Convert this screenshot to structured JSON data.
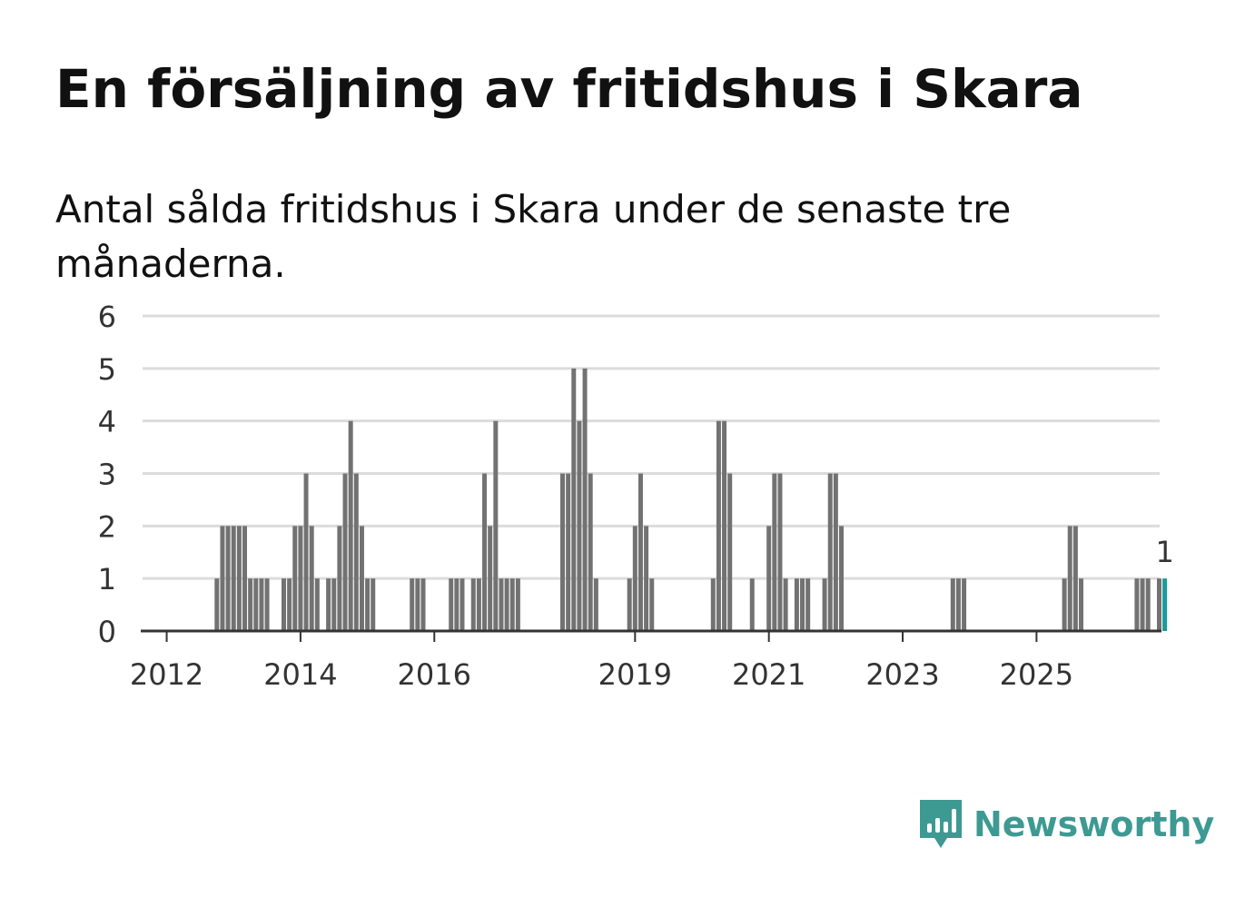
{
  "title": "En försäljning av fritidshus i Skara",
  "subtitle": "Antal sålda fritidshus i Skara under de senaste tre månaderna.",
  "brand": {
    "name": "Newsworthy",
    "icon": "newsworthy-logo-icon",
    "color": "#3d9a93"
  },
  "colors": {
    "bar": "#727272",
    "highlight": "#1a9b9b",
    "grid": "#dcdcdc",
    "axis": "#333333"
  },
  "chart_data": {
    "type": "bar",
    "title": "En försäljning av fritidshus i Skara",
    "xlabel": "",
    "ylabel": "",
    "ylim": [
      0,
      6
    ],
    "y_ticks": [
      "0",
      "1",
      "2",
      "3",
      "4",
      "5",
      "6"
    ],
    "x_tick_labels": [
      "2012",
      "2014",
      "2016",
      "2019",
      "2021",
      "2023",
      "2025"
    ],
    "start": "2011-09",
    "unit": "month",
    "values": [
      0,
      0,
      0,
      0,
      0,
      0,
      0,
      0,
      0,
      0,
      0,
      0,
      0,
      1,
      2,
      2,
      2,
      2,
      2,
      1,
      1,
      1,
      1,
      0,
      0,
      1,
      1,
      2,
      2,
      3,
      2,
      1,
      0,
      1,
      1,
      2,
      3,
      4,
      3,
      2,
      1,
      1,
      0,
      0,
      0,
      0,
      0,
      0,
      1,
      1,
      1,
      0,
      0,
      0,
      0,
      1,
      1,
      1,
      0,
      1,
      1,
      3,
      2,
      4,
      1,
      1,
      1,
      1,
      0,
      0,
      0,
      0,
      0,
      0,
      0,
      3,
      3,
      5,
      4,
      5,
      3,
      1,
      0,
      0,
      0,
      0,
      0,
      1,
      2,
      3,
      2,
      1,
      0,
      0,
      0,
      0,
      0,
      0,
      0,
      0,
      0,
      0,
      1,
      4,
      4,
      3,
      0,
      0,
      0,
      1,
      0,
      0,
      2,
      3,
      3,
      1,
      0,
      1,
      1,
      1,
      0,
      0,
      1,
      3,
      3,
      2,
      0,
      0,
      0,
      0,
      0,
      0,
      0,
      0,
      0,
      0,
      0,
      0,
      0,
      0,
      0,
      0,
      0,
      0,
      0,
      1,
      1,
      1,
      0,
      0,
      0,
      0,
      0,
      0,
      0,
      0,
      0,
      0,
      0,
      0,
      0,
      0,
      0,
      0,
      0,
      1,
      2,
      2,
      1,
      0,
      0,
      0,
      0,
      0,
      0,
      0,
      0,
      0,
      1,
      1,
      1,
      0,
      1,
      1
    ],
    "highlight_last": true,
    "last_label": "1"
  }
}
